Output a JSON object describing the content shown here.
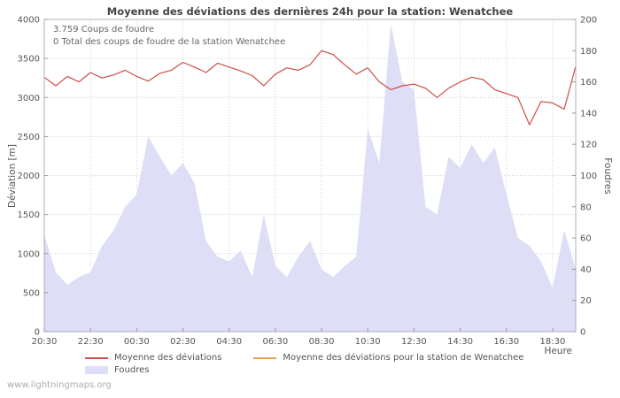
{
  "title": "Moyenne des déviations des dernières 24h pour la station: Wenatchee",
  "annotations": {
    "line1": "3.759 Coups de foudre",
    "line2": "0 Total des coups de foudre de la station Wenatchee"
  },
  "axes": {
    "y_left_label": "Déviation [m]",
    "y_right_label": "Foudres",
    "x_label": "Heure"
  },
  "legend": [
    {
      "label": "Moyenne des déviations",
      "type": "line",
      "color": "#cc4f4a"
    },
    {
      "label": "Moyenne des déviations pour la station de Wenatchee",
      "type": "line",
      "color": "#e8a05a"
    },
    {
      "label": "Foudres",
      "type": "area",
      "color": "#dedef6"
    }
  ],
  "watermark": "www.lightningmaps.org",
  "colors": {
    "grid": "#d0d0d8",
    "axis_box": "#b0b0b8",
    "tick_text": "#555555"
  },
  "chart_data": {
    "type": "line",
    "title": "Moyenne des déviations des dernières 24h pour la station: Wenatchee",
    "xlabel": "Heure",
    "grid": true,
    "legend_position": "bottom",
    "x": [
      "20:30",
      "21:00",
      "21:30",
      "22:00",
      "22:30",
      "23:00",
      "23:30",
      "00:00",
      "00:30",
      "01:00",
      "01:30",
      "02:00",
      "02:30",
      "03:00",
      "03:30",
      "04:00",
      "04:30",
      "05:00",
      "05:30",
      "06:00",
      "06:30",
      "07:00",
      "07:30",
      "08:00",
      "08:30",
      "09:00",
      "09:30",
      "10:00",
      "10:30",
      "11:00",
      "11:30",
      "12:00",
      "12:30",
      "13:00",
      "13:30",
      "14:00",
      "14:30",
      "15:00",
      "15:30",
      "16:00",
      "16:30",
      "17:00",
      "17:30",
      "18:00",
      "18:30",
      "19:00",
      "19:30"
    ],
    "x_ticks": [
      "20:30",
      "22:30",
      "00:30",
      "02:30",
      "04:30",
      "06:30",
      "08:30",
      "10:30",
      "12:30",
      "14:30",
      "16:30",
      "18:30"
    ],
    "y_left": {
      "label": "Déviation [m]",
      "min": 0,
      "max": 4000,
      "ticks": [
        0,
        500,
        1000,
        1500,
        2000,
        2500,
        3000,
        3500,
        4000
      ]
    },
    "y_right": {
      "label": "Foudres",
      "min": 0,
      "max": 200,
      "ticks": [
        0,
        20,
        40,
        60,
        80,
        100,
        120,
        140,
        160,
        180,
        200
      ]
    },
    "series": [
      {
        "name": "Foudres",
        "type": "area",
        "axis": "right",
        "color": "#dedef6",
        "values": [
          62,
          38,
          30,
          35,
          38,
          55,
          65,
          80,
          88,
          125,
          112,
          100,
          108,
          95,
          58,
          48,
          45,
          52,
          35,
          75,
          42,
          35,
          48,
          58,
          40,
          35,
          42,
          48,
          130,
          108,
          197,
          160,
          155,
          80,
          75,
          112,
          105,
          120,
          108,
          118,
          88,
          60,
          55,
          45,
          28,
          65,
          40
        ]
      },
      {
        "name": "Moyenne des déviations",
        "type": "line",
        "axis": "left",
        "color": "#cc4f4a",
        "values": [
          3260,
          3150,
          3270,
          3200,
          3320,
          3250,
          3290,
          3350,
          3270,
          3210,
          3310,
          3350,
          3450,
          3390,
          3320,
          3440,
          3390,
          3340,
          3280,
          3150,
          3300,
          3380,
          3350,
          3420,
          3600,
          3550,
          3420,
          3300,
          3380,
          3200,
          3100,
          3150,
          3170,
          3120,
          3000,
          3120,
          3200,
          3260,
          3230,
          3100,
          3050,
          3000,
          2650,
          2950,
          2930,
          2850,
          3400
        ]
      },
      {
        "name": "Moyenne des déviations pour la station de Wenatchee",
        "type": "line",
        "axis": "left",
        "color": "#e8a05a",
        "values": []
      }
    ]
  }
}
